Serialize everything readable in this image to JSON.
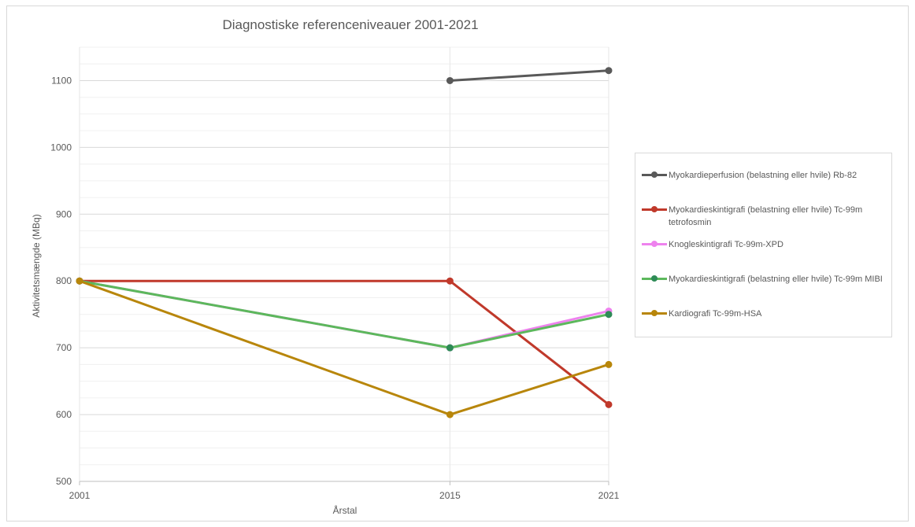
{
  "chart_data": {
    "type": "line",
    "title": "Diagnostiske referenceniveauer 2001-2021",
    "xlabel": "Årstal",
    "ylabel": "Aktivitetsmængde (MBq)",
    "x": [
      2001,
      2015,
      2021
    ],
    "x_tick_labels": [
      "2001",
      "2015",
      "2021"
    ],
    "ylim": [
      500,
      1150
    ],
    "y_ticks": [
      500,
      600,
      700,
      800,
      900,
      1000,
      1100
    ],
    "y_tick_labels": [
      "500",
      "600",
      "700",
      "800",
      "900",
      "1000",
      "1100"
    ],
    "grid": true,
    "legend_position": "right",
    "series": [
      {
        "name": "Myokardieperfusion (belastning eller hvile) Rb-82",
        "color": "#595959",
        "values": [
          null,
          1100,
          1115
        ]
      },
      {
        "name": "Myokardieskintigrafi (belastning eller hvile) Tc-99m tetrofosmin",
        "color": "#c0392b",
        "values": [
          800,
          800,
          615
        ]
      },
      {
        "name": "Knogleskintigrafi Tc-99m-XPD",
        "color": "#ee82ee",
        "values": [
          800,
          700,
          755
        ]
      },
      {
        "name": "Myokardieskintigrafi (belastning eller hvile) Tc-99m MIBI",
        "color": "#5cb85c",
        "marker_color": "#2e8b57",
        "values": [
          800,
          700,
          750
        ]
      },
      {
        "name": "Kardiografi Tc-99m-HSA",
        "color": "#b8860b",
        "values": [
          800,
          600,
          675
        ]
      }
    ]
  }
}
